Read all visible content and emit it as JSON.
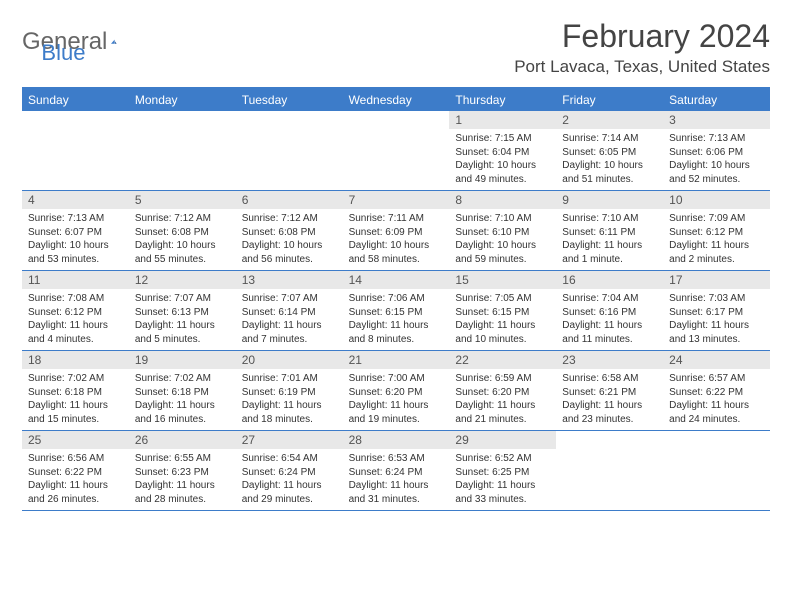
{
  "logo": {
    "text_gray": "General",
    "text_blue": "Blue"
  },
  "title": "February 2024",
  "location": "Port Lavaca, Texas, United States",
  "colors": {
    "accent": "#3d7cc9",
    "header_gray": "#666666",
    "daybar": "#e8e8e8",
    "text": "#333333",
    "title_text": "#444444"
  },
  "weekdays": [
    "Sunday",
    "Monday",
    "Tuesday",
    "Wednesday",
    "Thursday",
    "Friday",
    "Saturday"
  ],
  "weeks": [
    [
      {
        "empty": true
      },
      {
        "empty": true
      },
      {
        "empty": true
      },
      {
        "empty": true
      },
      {
        "day": "1",
        "sunrise": "Sunrise: 7:15 AM",
        "sunset": "Sunset: 6:04 PM",
        "daylight1": "Daylight: 10 hours",
        "daylight2": "and 49 minutes."
      },
      {
        "day": "2",
        "sunrise": "Sunrise: 7:14 AM",
        "sunset": "Sunset: 6:05 PM",
        "daylight1": "Daylight: 10 hours",
        "daylight2": "and 51 minutes."
      },
      {
        "day": "3",
        "sunrise": "Sunrise: 7:13 AM",
        "sunset": "Sunset: 6:06 PM",
        "daylight1": "Daylight: 10 hours",
        "daylight2": "and 52 minutes."
      }
    ],
    [
      {
        "day": "4",
        "sunrise": "Sunrise: 7:13 AM",
        "sunset": "Sunset: 6:07 PM",
        "daylight1": "Daylight: 10 hours",
        "daylight2": "and 53 minutes."
      },
      {
        "day": "5",
        "sunrise": "Sunrise: 7:12 AM",
        "sunset": "Sunset: 6:08 PM",
        "daylight1": "Daylight: 10 hours",
        "daylight2": "and 55 minutes."
      },
      {
        "day": "6",
        "sunrise": "Sunrise: 7:12 AM",
        "sunset": "Sunset: 6:08 PM",
        "daylight1": "Daylight: 10 hours",
        "daylight2": "and 56 minutes."
      },
      {
        "day": "7",
        "sunrise": "Sunrise: 7:11 AM",
        "sunset": "Sunset: 6:09 PM",
        "daylight1": "Daylight: 10 hours",
        "daylight2": "and 58 minutes."
      },
      {
        "day": "8",
        "sunrise": "Sunrise: 7:10 AM",
        "sunset": "Sunset: 6:10 PM",
        "daylight1": "Daylight: 10 hours",
        "daylight2": "and 59 minutes."
      },
      {
        "day": "9",
        "sunrise": "Sunrise: 7:10 AM",
        "sunset": "Sunset: 6:11 PM",
        "daylight1": "Daylight: 11 hours",
        "daylight2": "and 1 minute."
      },
      {
        "day": "10",
        "sunrise": "Sunrise: 7:09 AM",
        "sunset": "Sunset: 6:12 PM",
        "daylight1": "Daylight: 11 hours",
        "daylight2": "and 2 minutes."
      }
    ],
    [
      {
        "day": "11",
        "sunrise": "Sunrise: 7:08 AM",
        "sunset": "Sunset: 6:12 PM",
        "daylight1": "Daylight: 11 hours",
        "daylight2": "and 4 minutes."
      },
      {
        "day": "12",
        "sunrise": "Sunrise: 7:07 AM",
        "sunset": "Sunset: 6:13 PM",
        "daylight1": "Daylight: 11 hours",
        "daylight2": "and 5 minutes."
      },
      {
        "day": "13",
        "sunrise": "Sunrise: 7:07 AM",
        "sunset": "Sunset: 6:14 PM",
        "daylight1": "Daylight: 11 hours",
        "daylight2": "and 7 minutes."
      },
      {
        "day": "14",
        "sunrise": "Sunrise: 7:06 AM",
        "sunset": "Sunset: 6:15 PM",
        "daylight1": "Daylight: 11 hours",
        "daylight2": "and 8 minutes."
      },
      {
        "day": "15",
        "sunrise": "Sunrise: 7:05 AM",
        "sunset": "Sunset: 6:15 PM",
        "daylight1": "Daylight: 11 hours",
        "daylight2": "and 10 minutes."
      },
      {
        "day": "16",
        "sunrise": "Sunrise: 7:04 AM",
        "sunset": "Sunset: 6:16 PM",
        "daylight1": "Daylight: 11 hours",
        "daylight2": "and 11 minutes."
      },
      {
        "day": "17",
        "sunrise": "Sunrise: 7:03 AM",
        "sunset": "Sunset: 6:17 PM",
        "daylight1": "Daylight: 11 hours",
        "daylight2": "and 13 minutes."
      }
    ],
    [
      {
        "day": "18",
        "sunrise": "Sunrise: 7:02 AM",
        "sunset": "Sunset: 6:18 PM",
        "daylight1": "Daylight: 11 hours",
        "daylight2": "and 15 minutes."
      },
      {
        "day": "19",
        "sunrise": "Sunrise: 7:02 AM",
        "sunset": "Sunset: 6:18 PM",
        "daylight1": "Daylight: 11 hours",
        "daylight2": "and 16 minutes."
      },
      {
        "day": "20",
        "sunrise": "Sunrise: 7:01 AM",
        "sunset": "Sunset: 6:19 PM",
        "daylight1": "Daylight: 11 hours",
        "daylight2": "and 18 minutes."
      },
      {
        "day": "21",
        "sunrise": "Sunrise: 7:00 AM",
        "sunset": "Sunset: 6:20 PM",
        "daylight1": "Daylight: 11 hours",
        "daylight2": "and 19 minutes."
      },
      {
        "day": "22",
        "sunrise": "Sunrise: 6:59 AM",
        "sunset": "Sunset: 6:20 PM",
        "daylight1": "Daylight: 11 hours",
        "daylight2": "and 21 minutes."
      },
      {
        "day": "23",
        "sunrise": "Sunrise: 6:58 AM",
        "sunset": "Sunset: 6:21 PM",
        "daylight1": "Daylight: 11 hours",
        "daylight2": "and 23 minutes."
      },
      {
        "day": "24",
        "sunrise": "Sunrise: 6:57 AM",
        "sunset": "Sunset: 6:22 PM",
        "daylight1": "Daylight: 11 hours",
        "daylight2": "and 24 minutes."
      }
    ],
    [
      {
        "day": "25",
        "sunrise": "Sunrise: 6:56 AM",
        "sunset": "Sunset: 6:22 PM",
        "daylight1": "Daylight: 11 hours",
        "daylight2": "and 26 minutes."
      },
      {
        "day": "26",
        "sunrise": "Sunrise: 6:55 AM",
        "sunset": "Sunset: 6:23 PM",
        "daylight1": "Daylight: 11 hours",
        "daylight2": "and 28 minutes."
      },
      {
        "day": "27",
        "sunrise": "Sunrise: 6:54 AM",
        "sunset": "Sunset: 6:24 PM",
        "daylight1": "Daylight: 11 hours",
        "daylight2": "and 29 minutes."
      },
      {
        "day": "28",
        "sunrise": "Sunrise: 6:53 AM",
        "sunset": "Sunset: 6:24 PM",
        "daylight1": "Daylight: 11 hours",
        "daylight2": "and 31 minutes."
      },
      {
        "day": "29",
        "sunrise": "Sunrise: 6:52 AM",
        "sunset": "Sunset: 6:25 PM",
        "daylight1": "Daylight: 11 hours",
        "daylight2": "and 33 minutes."
      },
      {
        "empty": true
      },
      {
        "empty": true
      }
    ]
  ]
}
